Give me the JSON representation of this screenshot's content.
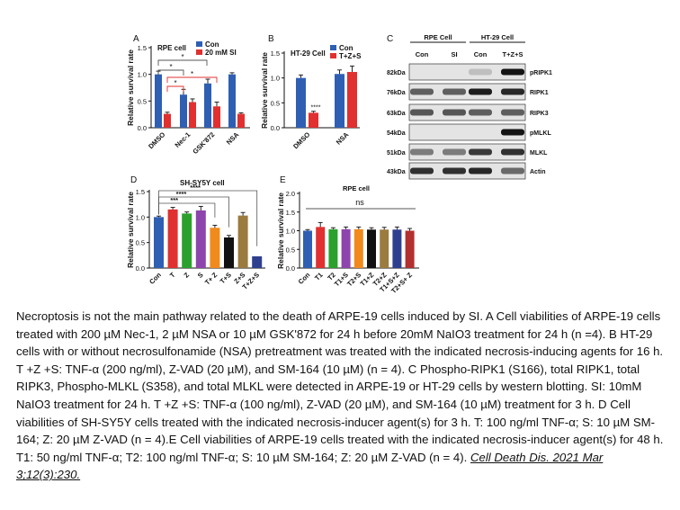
{
  "panels": {
    "A": {
      "letter": "A",
      "title": "RPE cell",
      "ylabel": "Relative survival rate",
      "yticks": [
        "0.0",
        "0.5",
        "1.0",
        "1.5"
      ],
      "legend": [
        {
          "name": "Con",
          "color": "#2f5fb3"
        },
        {
          "name": "20 mM SI",
          "color": "#e03030"
        }
      ],
      "sig": [
        "*",
        "*",
        "*",
        "*"
      ]
    },
    "B": {
      "letter": "B",
      "title": "HT-29 Cell",
      "ylabel": "Relative survival rate",
      "yticks": [
        "0.0",
        "0.5",
        "1.0",
        "1.5"
      ],
      "legend": [
        {
          "name": "Con",
          "color": "#2f5fb3"
        },
        {
          "name": "T+Z+S",
          "color": "#e03030"
        }
      ],
      "sig": "****"
    },
    "C": {
      "letter": "C",
      "groups": [
        "RPE Cell",
        "HT-29 Cell"
      ],
      "lanes": [
        "Con",
        "SI",
        "Con",
        "T+Z+S"
      ],
      "rows": [
        {
          "kda": "82kDa",
          "protein": "pRIPK1",
          "bands": [
            0.0,
            0.0,
            0.05,
            0.95
          ]
        },
        {
          "kda": "76kDa",
          "protein": "RIPK1",
          "bands": [
            0.55,
            0.55,
            0.9,
            0.85
          ]
        },
        {
          "kda": "63kDa",
          "protein": "RIPK3",
          "bands": [
            0.6,
            0.6,
            0.55,
            0.55
          ]
        },
        {
          "kda": "54kDa",
          "protein": "pMLKL",
          "bands": [
            0.0,
            0.0,
            0.0,
            0.95
          ]
        },
        {
          "kda": "51kDa",
          "protein": "MLKL",
          "bands": [
            0.4,
            0.4,
            0.75,
            0.8
          ]
        },
        {
          "kda": "43kDa",
          "protein": "Actin",
          "bands": [
            0.8,
            0.8,
            0.85,
            0.5
          ]
        }
      ]
    },
    "D": {
      "letter": "D",
      "title": "SH-SY5Y cell",
      "ylabel": "Relative survival rate",
      "yticks": [
        "0.0",
        "0.5",
        "1.0",
        "1.5"
      ],
      "sig": [
        "***",
        "****",
        "****"
      ]
    },
    "E": {
      "letter": "E",
      "title": "RPE cell",
      "ylabel": "Relative survival rate",
      "yticks": [
        "0.0",
        "0.5",
        "1.0",
        "1.5",
        "2.0"
      ],
      "sig": "ns"
    }
  },
  "chart_data": [
    {
      "type": "bar",
      "panel": "A",
      "title": "RPE cell",
      "ylabel": "Relative survival rate",
      "ylim": [
        0,
        1.5
      ],
      "categories": [
        "DMSO",
        "Nec-1",
        "GSK'872",
        "NSA"
      ],
      "series": [
        {
          "name": "Con",
          "color": "#2f5fb3",
          "values": [
            1.0,
            0.62,
            0.83,
            1.0
          ],
          "errors": [
            0.06,
            0.1,
            0.08,
            0.03
          ]
        },
        {
          "name": "20 mM SI",
          "color": "#e03030",
          "values": [
            0.26,
            0.48,
            0.4,
            0.26
          ],
          "errors": [
            0.03,
            0.06,
            0.08,
            0.02
          ]
        }
      ]
    },
    {
      "type": "bar",
      "panel": "B",
      "title": "HT-29 Cell",
      "ylabel": "Relative survival rate",
      "ylim": [
        0,
        1.5
      ],
      "categories": [
        "DMSO",
        "NSA"
      ],
      "series": [
        {
          "name": "Con",
          "color": "#2f5fb3",
          "values": [
            1.0,
            1.08
          ],
          "errors": [
            0.06,
            0.08
          ]
        },
        {
          "name": "T+Z+S",
          "color": "#e03030",
          "values": [
            0.3,
            1.12
          ],
          "errors": [
            0.03,
            0.12
          ]
        }
      ]
    },
    {
      "type": "bar",
      "panel": "D",
      "title": "SH-SY5Y cell",
      "ylabel": "Relative survival rate",
      "ylim": [
        0,
        1.5
      ],
      "categories": [
        "Con",
        "T",
        "Z",
        "S",
        "T+ Z",
        "T+S",
        "Z+S",
        "T+Z+S"
      ],
      "series": [
        {
          "values": [
            1.0,
            1.15,
            1.07,
            1.13,
            0.79,
            0.6,
            1.03,
            0.23
          ],
          "errors": [
            0.02,
            0.04,
            0.03,
            0.08,
            0.05,
            0.04,
            0.06,
            0.0
          ],
          "colors": [
            "#2f5fb3",
            "#e03030",
            "#2ca02c",
            "#8e44ad",
            "#f08a1c",
            "#111111",
            "#9c7b3f",
            "#2f3f8f"
          ]
        }
      ]
    },
    {
      "type": "bar",
      "panel": "E",
      "title": "RPE cell",
      "ylabel": "Relative survival rate",
      "ylim": [
        0,
        2.0
      ],
      "categories": [
        "Con",
        "T1",
        "T2",
        "T1+S",
        "T2+S",
        "T1+Z",
        "T2+Z",
        "T1+S+Z",
        "T2+S+ Z"
      ],
      "series": [
        {
          "values": [
            1.0,
            1.1,
            1.04,
            1.04,
            1.04,
            1.03,
            1.03,
            1.03,
            1.0
          ],
          "errors": [
            0.03,
            0.12,
            0.04,
            0.06,
            0.06,
            0.05,
            0.06,
            0.07,
            0.06
          ],
          "colors": [
            "#2f5fb3",
            "#e03030",
            "#2ca02c",
            "#8e44ad",
            "#f08a1c",
            "#111111",
            "#9c7b3f",
            "#2f3f8f",
            "#b23030"
          ]
        }
      ]
    }
  ],
  "caption": {
    "text": "Necroptosis is not the main pathway related to the death of ARPE-19 cells induced by SI. A Cell viabilities of ARPE-19 cells treated with 200 µM Nec-1, 2 µM NSA or 10 µM GSK'872 for 24 h before 20mM NaIO3 treatment for 24 h (n =4). B HT-29 cells with or without necrosulfonamide (NSA) pretreatment was treated with the indicated necrosis-inducing agents for 16 h. T +Z +S: TNF-α (200 ng/ml), Z-VAD (20 µM), and SM-164 (10 µM) (n = 4). C Phospho-RIPK1 (S166), total RIPK1, total RIPK3, Phospho-MLKL (S358), and total MLKL were detected in ARPE-19 or HT-29 cells by western blotting. SI: 10mM NaIO3 treatment for 24 h. T +Z +S: TNF-α (100 ng/ml), Z-VAD (20 µM), and SM-164 (10 µM) treatment for 3 h. D Cell viabilities of SH-SY5Y cells treated with the indicated necrosis-inducer agent(s) for 3 h. T: 100 ng/ml TNF-α; S: 10 µM SM-164; Z: 20 µM Z-VAD (n = 4).E Cell viabilities of ARPE-19 cells treated with the indicated necrosis-inducer agent(s) for 48 h. T1: 50 ng/ml TNF-α; T2: 100 ng/ml TNF-α; S: 10 µM SM-164; Z: 20 µM Z-VAD (n = 4).",
    "citation": "Cell Death Dis. 2021 Mar 3;12(3):230."
  }
}
